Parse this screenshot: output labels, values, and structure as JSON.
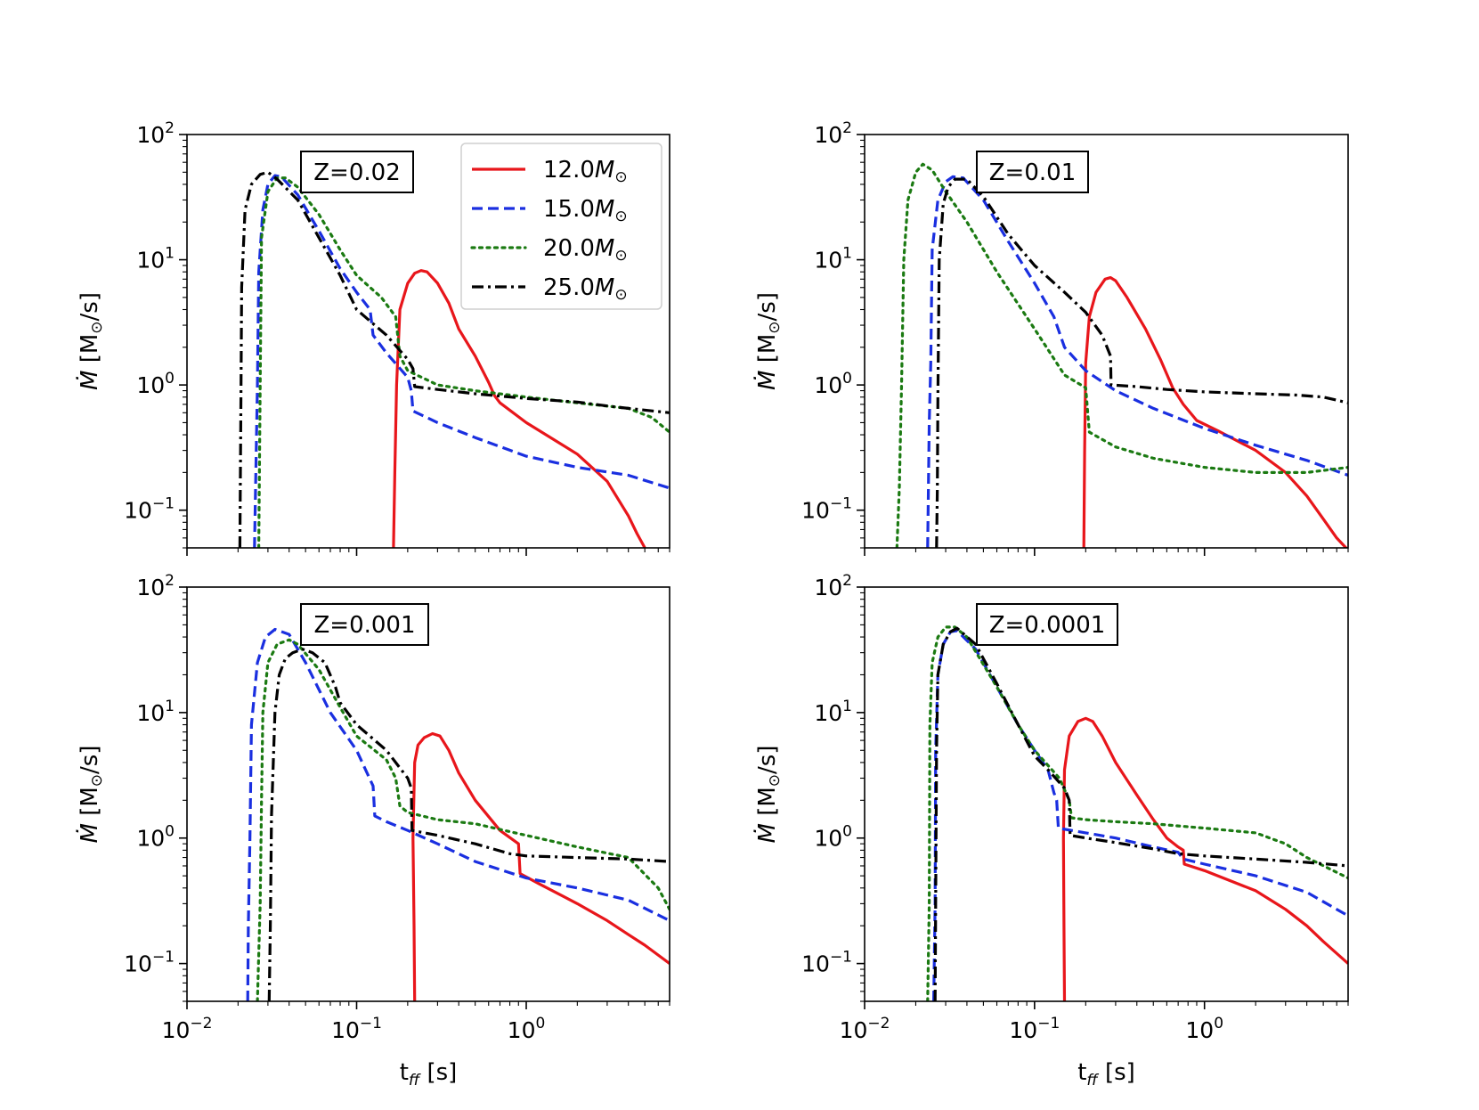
{
  "figure": {
    "xlabel_main": "t",
    "xlabel_sub": "ff",
    "xlabel_unit": " [s]",
    "ylabel_main": "Ṁ",
    "ylabel_unit": " [M",
    "ylabel_sun": "⊙",
    "ylabel_tail": "/s]"
  },
  "legend": [
    {
      "mass": "12.0",
      "unit": "M",
      "sun": "⊙",
      "color": "#e8161b",
      "dash": "solid"
    },
    {
      "mass": "15.0",
      "unit": "M",
      "sun": "⊙",
      "color": "#1a2fe0",
      "dash": "dashed"
    },
    {
      "mass": "20.0",
      "unit": "M",
      "sun": "⊙",
      "color": "#1b7a12",
      "dash": "dotted"
    },
    {
      "mass": "25.0",
      "unit": "M",
      "sun": "⊙",
      "color": "#000000",
      "dash": "dashdot"
    }
  ],
  "ticks": {
    "x": [
      {
        "base": "10",
        "exp": "−2",
        "v": -2
      },
      {
        "base": "10",
        "exp": "−1",
        "v": -1
      },
      {
        "base": "10",
        "exp": "0",
        "v": 0
      }
    ],
    "y": [
      {
        "base": "10",
        "exp": "2",
        "v": 2
      },
      {
        "base": "10",
        "exp": "1",
        "v": 1
      },
      {
        "base": "10",
        "exp": "0",
        "v": 0
      },
      {
        "base": "10",
        "exp": "−1",
        "v": -1
      }
    ]
  },
  "chart_data": [
    {
      "type": "line",
      "annotation": "Z=0.02",
      "x_scale": "log",
      "y_scale": "log",
      "xlim": [
        0.01,
        7.0
      ],
      "ylim": [
        0.05,
        100
      ],
      "series": [
        {
          "name": "12.0M⊙",
          "x": [
            0.165,
            0.168,
            0.172,
            0.18,
            0.2,
            0.22,
            0.24,
            0.26,
            0.3,
            0.35,
            0.4,
            0.5,
            0.6,
            0.65,
            0.7,
            1.0,
            2.0,
            3.0,
            4.0,
            4.5,
            5.0
          ],
          "y": [
            0.05,
            0.2,
            1.0,
            4.0,
            6.5,
            7.8,
            8.2,
            8.0,
            6.5,
            4.5,
            2.8,
            1.7,
            1.05,
            0.82,
            0.72,
            0.5,
            0.28,
            0.17,
            0.09,
            0.065,
            0.05
          ]
        },
        {
          "name": "15.0M⊙",
          "x": [
            0.025,
            0.026,
            0.0265,
            0.028,
            0.03,
            0.033,
            0.036,
            0.045,
            0.06,
            0.08,
            0.1,
            0.12,
            0.125,
            0.15,
            0.2,
            0.21,
            0.215,
            0.3,
            0.5,
            1.0,
            2.0,
            4.0,
            7.0
          ],
          "y": [
            0.05,
            1.0,
            8.0,
            25,
            40,
            47,
            46,
            33,
            17,
            8.5,
            5.5,
            4.0,
            2.5,
            1.8,
            1.15,
            0.9,
            0.62,
            0.5,
            0.38,
            0.27,
            0.22,
            0.19,
            0.15
          ]
        },
        {
          "name": "20.0M⊙",
          "x": [
            0.0265,
            0.027,
            0.0275,
            0.03,
            0.034,
            0.038,
            0.045,
            0.06,
            0.08,
            0.1,
            0.14,
            0.17,
            0.18,
            0.2,
            0.3,
            0.5,
            1.0,
            2.0,
            4.0,
            5.5,
            7.0
          ],
          "y": [
            0.05,
            1.0,
            15,
            35,
            45,
            45,
            38,
            23,
            12,
            7.5,
            5.0,
            3.5,
            1.7,
            1.3,
            1.0,
            0.9,
            0.8,
            0.72,
            0.65,
            0.55,
            0.42
          ]
        },
        {
          "name": "25.0M⊙",
          "x": [
            0.0205,
            0.0208,
            0.021,
            0.022,
            0.024,
            0.027,
            0.03,
            0.034,
            0.045,
            0.06,
            0.08,
            0.1,
            0.15,
            0.2,
            0.215,
            0.22,
            0.3,
            0.5,
            1.0,
            2.0,
            3.0,
            4.0,
            7.0
          ],
          "y": [
            0.05,
            0.8,
            6.0,
            25,
            40,
            48,
            50,
            44,
            30,
            15,
            7.5,
            4.0,
            2.5,
            1.6,
            1.35,
            0.97,
            0.92,
            0.85,
            0.78,
            0.73,
            0.68,
            0.65,
            0.6
          ]
        }
      ]
    },
    {
      "type": "line",
      "annotation": "Z=0.01",
      "x_scale": "log",
      "y_scale": "log",
      "xlim": [
        0.01,
        7.0
      ],
      "ylim": [
        0.05,
        100
      ],
      "series": [
        {
          "name": "12.0M⊙",
          "x": [
            0.195,
            0.197,
            0.2,
            0.21,
            0.23,
            0.26,
            0.28,
            0.3,
            0.35,
            0.45,
            0.55,
            0.65,
            0.75,
            0.9,
            1.2,
            2.0,
            3.0,
            4.0,
            5.0,
            6.0,
            7.0
          ],
          "y": [
            0.05,
            0.3,
            1.5,
            3.5,
            5.5,
            7.0,
            7.2,
            6.8,
            5.0,
            2.8,
            1.6,
            0.95,
            0.7,
            0.52,
            0.43,
            0.3,
            0.2,
            0.13,
            0.085,
            0.06,
            0.048
          ]
        },
        {
          "name": "15.0M⊙",
          "x": [
            0.0235,
            0.024,
            0.0245,
            0.025,
            0.027,
            0.03,
            0.033,
            0.038,
            0.05,
            0.07,
            0.1,
            0.13,
            0.15,
            0.2,
            0.3,
            0.5,
            1.0,
            2.0,
            4.0,
            7.0
          ],
          "y": [
            0.05,
            0.5,
            1.5,
            12,
            30,
            42,
            46,
            45,
            30,
            14,
            6.5,
            3.5,
            2.0,
            1.3,
            0.9,
            0.65,
            0.45,
            0.33,
            0.25,
            0.19
          ]
        },
        {
          "name": "20.0M⊙",
          "x": [
            0.0155,
            0.016,
            0.0165,
            0.017,
            0.018,
            0.02,
            0.022,
            0.025,
            0.03,
            0.04,
            0.06,
            0.1,
            0.15,
            0.2,
            0.21,
            0.3,
            0.5,
            1.0,
            2.0,
            4.0,
            7.0
          ],
          "y": [
            0.05,
            0.15,
            1.0,
            10,
            30,
            50,
            58,
            52,
            35,
            20,
            8,
            2.8,
            1.2,
            0.95,
            0.42,
            0.32,
            0.26,
            0.22,
            0.2,
            0.2,
            0.22
          ]
        },
        {
          "name": "25.0M⊙",
          "x": [
            0.0265,
            0.0268,
            0.027,
            0.0275,
            0.029,
            0.031,
            0.034,
            0.04,
            0.05,
            0.07,
            0.1,
            0.15,
            0.2,
            0.25,
            0.28,
            0.282,
            0.4,
            0.6,
            1.0,
            2.0,
            3.5,
            5.0,
            7.0
          ],
          "y": [
            0.05,
            0.15,
            0.8,
            10,
            28,
            38,
            44,
            44,
            32,
            16,
            9.0,
            5.5,
            3.8,
            2.5,
            1.7,
            1.0,
            0.97,
            0.92,
            0.88,
            0.85,
            0.83,
            0.8,
            0.72
          ]
        }
      ]
    },
    {
      "type": "line",
      "annotation": "Z=0.001",
      "x_scale": "log",
      "y_scale": "log",
      "xlim": [
        0.01,
        7.0
      ],
      "ylim": [
        0.05,
        100
      ],
      "series": [
        {
          "name": "12.0M⊙",
          "x": [
            0.22,
            0.218,
            0.215,
            0.22,
            0.23,
            0.25,
            0.28,
            0.31,
            0.35,
            0.4,
            0.5,
            0.7,
            0.9,
            0.92,
            1.2,
            2.0,
            3.0,
            4.0,
            5.0,
            7.0
          ],
          "y": [
            0.05,
            0.2,
            1.0,
            4.0,
            5.5,
            6.3,
            6.8,
            6.5,
            5.0,
            3.3,
            2.0,
            1.15,
            0.9,
            0.52,
            0.43,
            0.3,
            0.22,
            0.17,
            0.14,
            0.1
          ]
        },
        {
          "name": "15.0M⊙",
          "x": [
            0.0228,
            0.023,
            0.0235,
            0.024,
            0.026,
            0.029,
            0.033,
            0.04,
            0.05,
            0.07,
            0.1,
            0.125,
            0.128,
            0.15,
            0.2,
            0.3,
            0.5,
            1.0,
            2.0,
            4.0,
            7.0
          ],
          "y": [
            0.05,
            0.2,
            1.0,
            8.0,
            25,
            40,
            46,
            42,
            25,
            10,
            5.0,
            2.6,
            1.5,
            1.35,
            1.15,
            0.9,
            0.65,
            0.48,
            0.4,
            0.32,
            0.22
          ]
        },
        {
          "name": "20.0M⊙",
          "x": [
            0.026,
            0.027,
            0.0275,
            0.028,
            0.03,
            0.034,
            0.04,
            0.045,
            0.06,
            0.08,
            0.1,
            0.15,
            0.17,
            0.18,
            0.2,
            0.3,
            0.5,
            1.0,
            2.0,
            4.0,
            6.0,
            7.0
          ],
          "y": [
            0.05,
            0.3,
            2.0,
            10,
            25,
            35,
            38,
            35,
            22,
            11,
            6.5,
            4.2,
            3.0,
            1.8,
            1.6,
            1.4,
            1.3,
            1.05,
            0.85,
            0.7,
            0.4,
            0.27
          ]
        },
        {
          "name": "25.0M⊙",
          "x": [
            0.0305,
            0.031,
            0.0315,
            0.033,
            0.035,
            0.038,
            0.042,
            0.048,
            0.055,
            0.065,
            0.075,
            0.08,
            0.1,
            0.15,
            0.2,
            0.21,
            0.212,
            0.3,
            0.5,
            0.8,
            1.0,
            2.0,
            4.0,
            7.0
          ],
          "y": [
            0.05,
            0.2,
            1.5,
            10,
            20,
            27,
            30,
            32,
            30,
            25,
            16,
            12,
            8.0,
            5.0,
            3.0,
            2.5,
            1.15,
            1.05,
            0.9,
            0.75,
            0.72,
            0.7,
            0.68,
            0.65
          ]
        }
      ]
    },
    {
      "type": "line",
      "annotation": "Z=0.0001",
      "x_scale": "log",
      "y_scale": "log",
      "xlim": [
        0.01,
        7.0
      ],
      "ylim": [
        0.05,
        100
      ],
      "series": [
        {
          "name": "12.0M⊙",
          "x": [
            0.15,
            0.149,
            0.148,
            0.15,
            0.16,
            0.18,
            0.2,
            0.22,
            0.25,
            0.3,
            0.4,
            0.5,
            0.6,
            0.7,
            0.75,
            0.76,
            1.0,
            2.0,
            3.0,
            4.0,
            5.0,
            7.0
          ],
          "y": [
            0.05,
            0.2,
            1.0,
            3.5,
            6.5,
            8.5,
            9.0,
            8.5,
            6.5,
            4.0,
            2.2,
            1.4,
            1.0,
            0.85,
            0.8,
            0.62,
            0.55,
            0.38,
            0.27,
            0.2,
            0.15,
            0.1
          ]
        },
        {
          "name": "15.0M⊙",
          "x": [
            0.0255,
            0.026,
            0.0262,
            0.027,
            0.029,
            0.032,
            0.035,
            0.045,
            0.06,
            0.08,
            0.1,
            0.12,
            0.13,
            0.135,
            0.138,
            0.2,
            0.3,
            0.5,
            0.7,
            0.75,
            1.0,
            2.0,
            4.0,
            7.0
          ],
          "y": [
            0.05,
            0.3,
            5.0,
            20,
            35,
            44,
            45,
            32,
            16,
            8.0,
            5.0,
            3.5,
            2.3,
            2.0,
            1.2,
            1.1,
            1.0,
            0.85,
            0.77,
            0.68,
            0.62,
            0.5,
            0.37,
            0.24
          ]
        },
        {
          "name": "20.0M⊙",
          "x": [
            0.0235,
            0.024,
            0.0242,
            0.025,
            0.027,
            0.03,
            0.034,
            0.04,
            0.06,
            0.08,
            0.1,
            0.14,
            0.16,
            0.165,
            0.2,
            0.3,
            0.5,
            0.7,
            1.0,
            2.0,
            3.0,
            4.0,
            7.0
          ],
          "y": [
            0.05,
            0.3,
            8.0,
            25,
            40,
            48,
            48,
            40,
            16,
            8.0,
            5.0,
            3.0,
            2.0,
            1.45,
            1.4,
            1.35,
            1.3,
            1.25,
            1.2,
            1.1,
            0.9,
            0.7,
            0.48
          ]
        },
        {
          "name": "25.0M⊙",
          "x": [
            0.026,
            0.0262,
            0.0265,
            0.027,
            0.029,
            0.032,
            0.035,
            0.045,
            0.06,
            0.08,
            0.1,
            0.12,
            0.15,
            0.16,
            0.162,
            0.2,
            0.3,
            0.5,
            0.7,
            1.0,
            2.0,
            4.0,
            7.0
          ],
          "y": [
            0.05,
            0.3,
            5.0,
            20,
            35,
            44,
            47,
            35,
            17,
            8.0,
            4.5,
            3.5,
            2.5,
            2.0,
            1.05,
            1.0,
            0.92,
            0.82,
            0.75,
            0.72,
            0.68,
            0.64,
            0.6
          ]
        }
      ]
    }
  ]
}
